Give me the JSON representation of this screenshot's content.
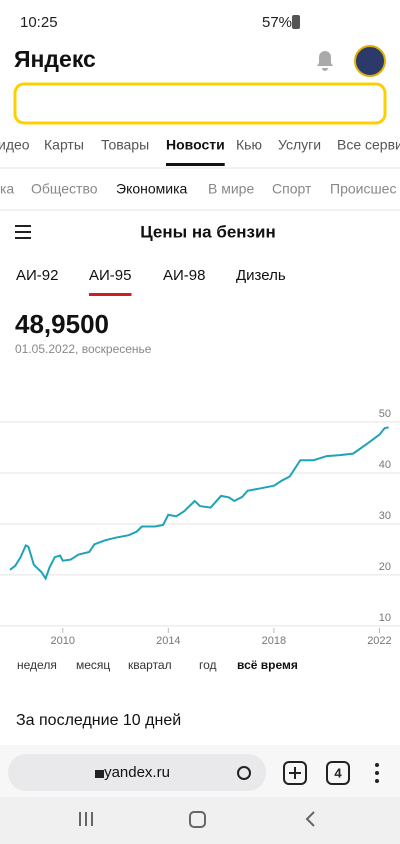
{
  "status_bar": {
    "time": "10:25",
    "battery": "57%"
  },
  "header": {
    "logo": "Яндекс"
  },
  "services_tabs": {
    "items": [
      "идео",
      "Карты",
      "Товары",
      "Новости",
      "Кью",
      "Услуги",
      "Все серви"
    ],
    "active": 3
  },
  "news_tabs": {
    "items": [
      "ка",
      "Общество",
      "Экономика",
      "В мире",
      "Спорт",
      "Происшес"
    ],
    "active": 2
  },
  "page": {
    "title": "Цены на бензин"
  },
  "fuel_tabs": {
    "items": [
      "АИ-92",
      "АИ-95",
      "АИ-98",
      "Дизель"
    ],
    "active": 1
  },
  "price": {
    "value": "48,9500",
    "date": "01.05.2022, воскресенье"
  },
  "chart_data": {
    "type": "line",
    "color": "#1fa3b8",
    "x": [
      2008.0,
      2008.2,
      2008.4,
      2008.6,
      2008.7,
      2008.9,
      2009.2,
      2009.35,
      2009.5,
      2009.7,
      2009.9,
      2010.0,
      2010.3,
      2010.6,
      2011.0,
      2011.2,
      2011.6,
      2012.0,
      2012.5,
      2012.8,
      2013.0,
      2013.5,
      2013.8,
      2014.0,
      2014.3,
      2014.6,
      2015.0,
      2015.2,
      2015.6,
      2016.0,
      2016.3,
      2016.5,
      2016.8,
      2017.0,
      2017.5,
      2018.0,
      2018.3,
      2018.6,
      2019.0,
      2019.5,
      2020.0,
      2020.5,
      2021.0,
      2021.2,
      2021.6,
      2022.0,
      2022.2,
      2022.35
    ],
    "values": [
      21,
      21.8,
      23.5,
      25.8,
      25.5,
      22,
      20.5,
      19.3,
      21.5,
      23.5,
      23.8,
      22.8,
      23,
      24,
      24.5,
      26,
      26.8,
      27.3,
      27.8,
      28.5,
      29.5,
      29.5,
      29.8,
      31.8,
      31.5,
      32.5,
      34.5,
      33.5,
      33.2,
      35.5,
      35.2,
      34.5,
      35.3,
      36.5,
      37,
      37.5,
      38.5,
      39.3,
      42.5,
      42.5,
      43.3,
      43.5,
      43.8,
      44.5,
      46,
      47.5,
      48.8,
      48.95
    ],
    "xlim": [
      2008,
      2022.4
    ],
    "ylim": [
      9,
      52
    ],
    "xticks": [
      2010,
      2014,
      2018,
      2022
    ],
    "yticks": [
      10,
      20,
      30,
      40,
      50
    ],
    "grid": true
  },
  "periods": {
    "items": [
      "неделя",
      "месяц",
      "квартал",
      "год",
      "всё время"
    ],
    "active": 4
  },
  "section": {
    "title": "За последние 10 дней"
  },
  "browser": {
    "url": "yandex.ru",
    "tabs_count": "4"
  }
}
